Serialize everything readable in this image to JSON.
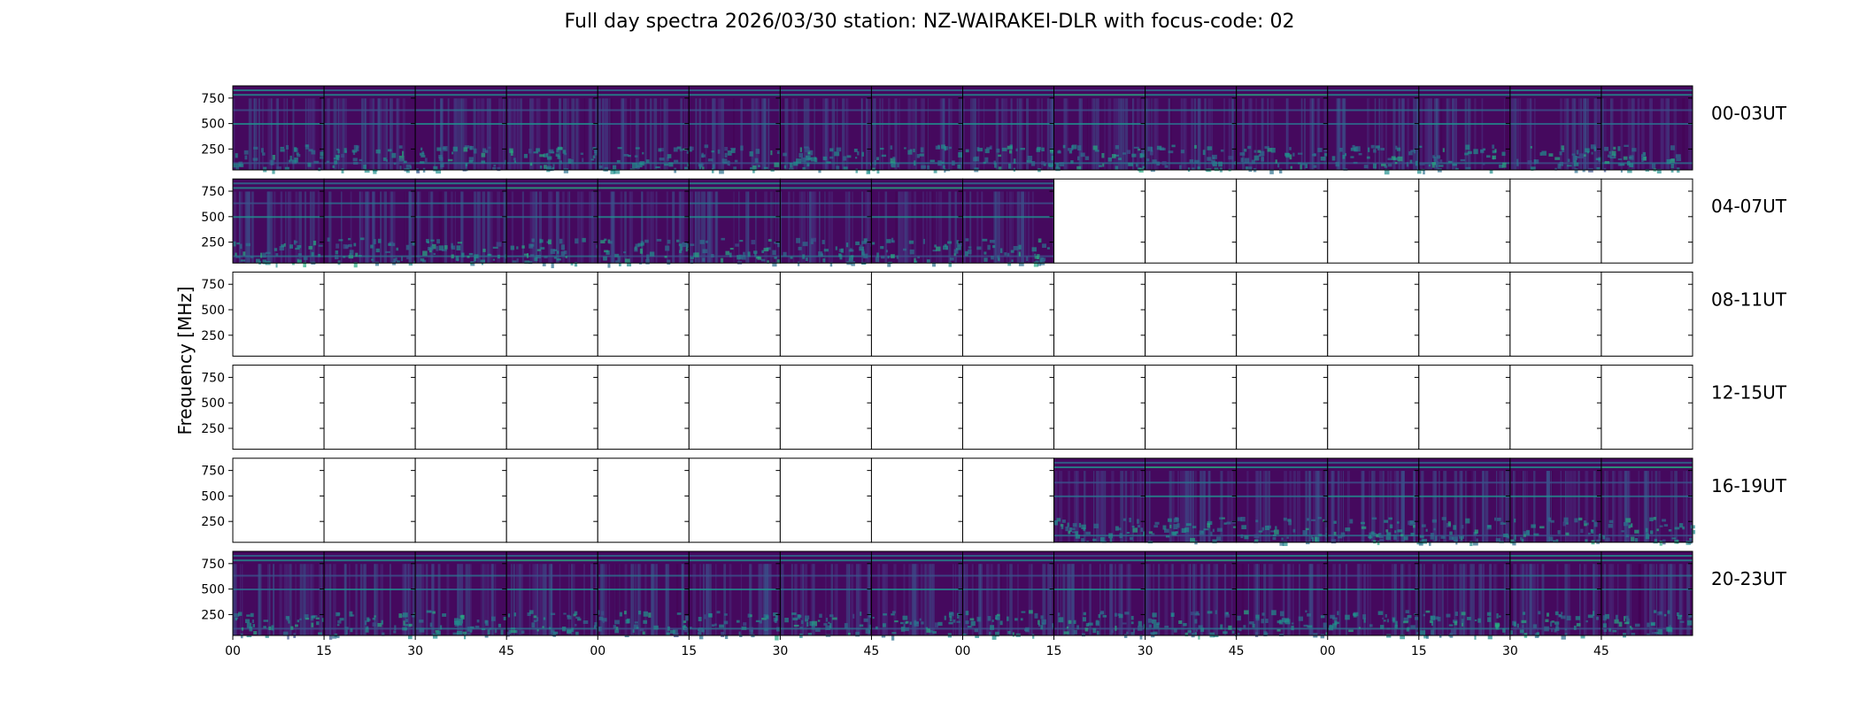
{
  "page": {
    "title": "Full day spectra 2026/03/30 station: NZ-WAIRAKEI-DLR with focus-code: 02"
  },
  "colors": {
    "background": "#ffffff",
    "frame": "#000000",
    "colormap": [
      "#440154",
      "#472a7a",
      "#3b518b",
      "#2c718e",
      "#21908d",
      "#27ad81",
      "#5cc863",
      "#aadc32",
      "#fde725"
    ],
    "base": "#45095e"
  },
  "chart_data": {
    "type": "heatmap",
    "title": "Full day spectra 2026/03/30 station: NZ-WAIRAKEI-DLR with focus-code: 02",
    "ylabel": "Frequency [MHz]",
    "xlabel": "",
    "yticks": [
      250,
      500,
      750
    ],
    "ylim": [
      45,
      870
    ],
    "xticks": [
      "00",
      "15",
      "30",
      "45",
      "00",
      "15",
      "30",
      "45",
      "00",
      "15",
      "30",
      "45",
      "00",
      "15",
      "30",
      "45"
    ],
    "columns_per_row": 16,
    "column_minutes": 15,
    "rows": [
      {
        "label": "00-03UT",
        "panels_with_data": [
          1,
          1,
          1,
          1,
          1,
          1,
          1,
          1,
          1,
          1,
          1,
          1,
          1,
          1,
          1,
          1
        ]
      },
      {
        "label": "04-07UT",
        "panels_with_data": [
          1,
          1,
          1,
          1,
          1,
          1,
          1,
          1,
          1,
          0,
          0,
          0,
          0,
          0,
          0,
          0
        ]
      },
      {
        "label": "08-11UT",
        "panels_with_data": [
          0,
          0,
          0,
          0,
          0,
          0,
          0,
          0,
          0,
          0,
          0,
          0,
          0,
          0,
          0,
          0
        ]
      },
      {
        "label": "12-15UT",
        "panels_with_data": [
          0,
          0,
          0,
          0,
          0,
          0,
          0,
          0,
          0,
          0,
          0,
          0,
          0,
          0,
          0,
          0
        ]
      },
      {
        "label": "16-19UT",
        "panels_with_data": [
          0,
          0,
          0,
          0,
          0,
          0,
          0,
          0,
          0,
          1,
          1,
          1,
          1,
          1,
          1,
          1
        ]
      },
      {
        "label": "20-23UT",
        "panels_with_data": [
          1,
          1,
          1,
          1,
          1,
          1,
          1,
          1,
          1,
          1,
          1,
          1,
          1,
          1,
          1,
          1
        ]
      }
    ]
  }
}
